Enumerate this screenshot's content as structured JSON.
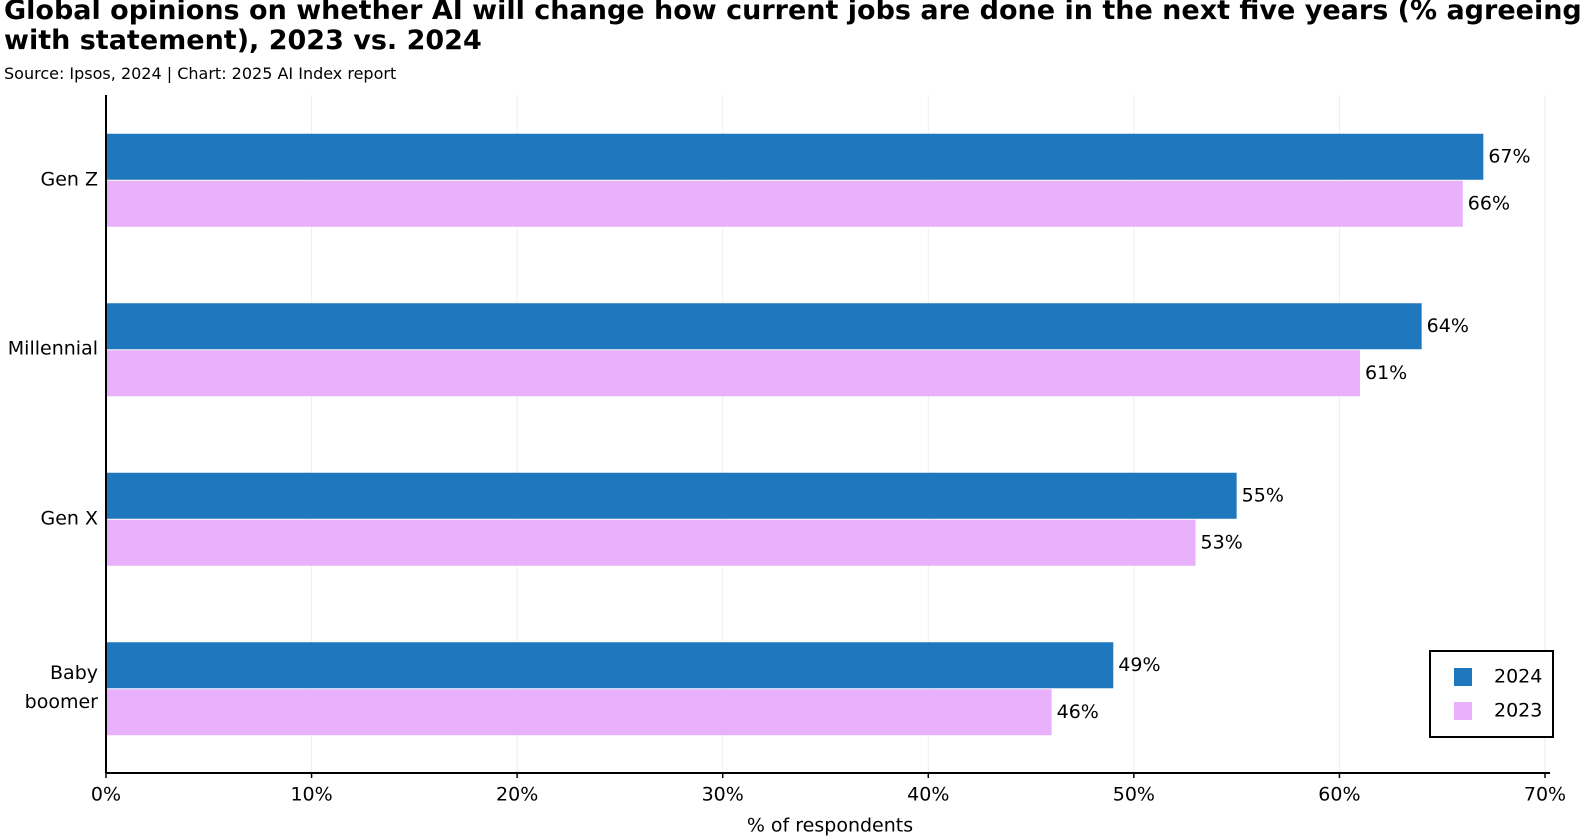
{
  "chart_data": {
    "type": "bar",
    "orientation": "horizontal",
    "title": "Global opinions on whether AI will change how current jobs are done in the next five years (% agreeing with statement), 2023 vs. 2024",
    "subtitle": "Source: Ipsos, 2024 | Chart: 2025 AI Index report",
    "x_label": "% of respondents",
    "categories": [
      "Gen Z",
      "Millennial",
      "Gen X",
      "Baby boomer"
    ],
    "series": [
      {
        "name": "2024",
        "color": "#1f77bd",
        "values": [
          67,
          64,
          55,
          49
        ],
        "value_labels": [
          "67%",
          "64%",
          "55%",
          "49%"
        ]
      },
      {
        "name": "2023",
        "color": "#e9b0fc",
        "values": [
          66,
          61,
          53,
          46
        ],
        "value_labels": [
          "66%",
          "61%",
          "53%",
          "46%"
        ]
      }
    ],
    "xlim": [
      0,
      70
    ],
    "xticks": [
      {
        "value": 0,
        "label": "0%"
      },
      {
        "value": 10,
        "label": "10%"
      },
      {
        "value": 20,
        "label": "20%"
      },
      {
        "value": 30,
        "label": "30%"
      },
      {
        "value": 40,
        "label": "40%"
      },
      {
        "value": 50,
        "label": "50%"
      },
      {
        "value": 60,
        "label": "60%"
      },
      {
        "value": 70,
        "label": "70%"
      }
    ],
    "grid": true,
    "legend": "lower right"
  }
}
